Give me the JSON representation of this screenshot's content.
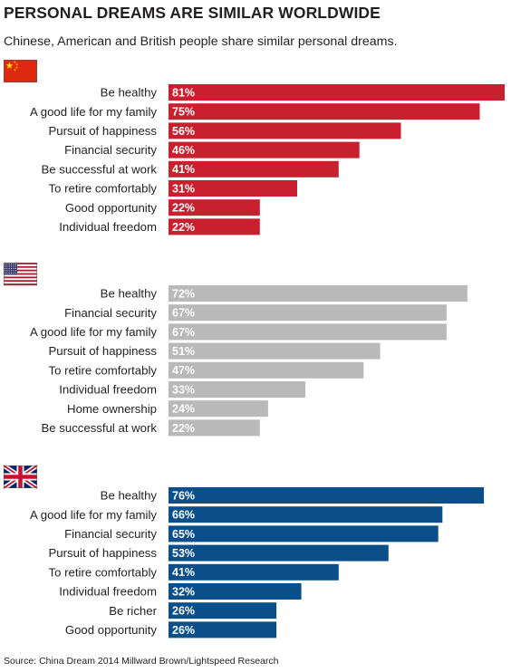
{
  "header": {
    "title": "PERSONAL DREAMS ARE SIMILAR WORLDWIDE",
    "subtitle": "Chinese, American and British people share similar personal dreams."
  },
  "footer": {
    "source": "Source: China Dream 2014 Millward Brown/Lightspeed Research"
  },
  "colors": {
    "china": "#c8202f",
    "usa": "#b9b9b9",
    "uk": "#0b4f8a"
  },
  "chart_data": [
    {
      "type": "bar",
      "orientation": "horizontal",
      "group_icon": "china-flag-icon",
      "categories": [
        "Be healthy",
        "A good life for my family",
        "Pursuit of happiness",
        "Financial security",
        "Be successful at work",
        "To retire comfortably",
        "Good opportunity",
        "Individual freedom"
      ],
      "values": [
        81,
        75,
        56,
        46,
        41,
        31,
        22,
        22
      ],
      "value_labels": [
        "81%",
        "75%",
        "56%",
        "46%",
        "41%",
        "31%",
        "22%",
        "22%"
      ],
      "unit": "%",
      "xlim": [
        0,
        81
      ]
    },
    {
      "type": "bar",
      "orientation": "horizontal",
      "group_icon": "usa-flag-icon",
      "categories": [
        "Be healthy",
        "Financial security",
        "A good life for my family",
        "Pursuit of happiness",
        "To retire comfortably",
        "Individual freedom",
        "Home ownership",
        "Be successful at work"
      ],
      "values": [
        72,
        67,
        67,
        51,
        47,
        33,
        24,
        22
      ],
      "value_labels": [
        "72%",
        "67%",
        "67%",
        "51%",
        "47%",
        "33%",
        "24%",
        "22%"
      ],
      "unit": "%",
      "xlim": [
        0,
        81
      ]
    },
    {
      "type": "bar",
      "orientation": "horizontal",
      "group_icon": "uk-flag-icon",
      "categories": [
        "Be healthy",
        "A good life for my family",
        "Financial security",
        "Pursuit of happiness",
        "To retire comfortably",
        "Individual freedom",
        "Be richer",
        "Good opportunity"
      ],
      "values": [
        76,
        66,
        65,
        53,
        41,
        32,
        26,
        26
      ],
      "value_labels": [
        "76%",
        "66%",
        "65%",
        "53%",
        "41%",
        "32%",
        "26%",
        "26%"
      ],
      "unit": "%",
      "xlim": [
        0,
        81
      ]
    }
  ]
}
